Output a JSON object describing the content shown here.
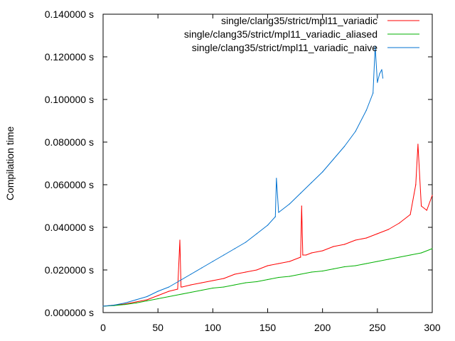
{
  "chart_data": {
    "type": "line",
    "title": "",
    "xlabel": "",
    "ylabel": "Compilation time",
    "xlim": [
      0,
      300
    ],
    "ylim": [
      0,
      0.14
    ],
    "xticks": [
      0,
      50,
      100,
      150,
      200,
      250,
      300
    ],
    "xtick_labels": [
      "0",
      "50",
      "100",
      "150",
      "200",
      "250",
      "300"
    ],
    "yticks": [
      0,
      0.02,
      0.04,
      0.06,
      0.08,
      0.1,
      0.12,
      0.14
    ],
    "ytick_labels": [
      "0.000000 s",
      "0.020000 s",
      "0.040000 s",
      "0.060000 s",
      "0.080000 s",
      "0.100000 s",
      "0.120000 s",
      "0.140000 s"
    ],
    "grid": false,
    "legend_position": "top-right",
    "series": [
      {
        "name": "single/clang35/strict/mpl11_variadic",
        "color": "#ff0000",
        "x": [
          0,
          10,
          20,
          30,
          40,
          50,
          60,
          68,
          70,
          71,
          72,
          80,
          90,
          100,
          110,
          120,
          130,
          140,
          150,
          160,
          170,
          180,
          181,
          182,
          185,
          190,
          200,
          210,
          220,
          230,
          240,
          250,
          260,
          270,
          280,
          285,
          287,
          290,
          295,
          300
        ],
        "y": [
          0.003,
          0.0035,
          0.004,
          0.005,
          0.006,
          0.008,
          0.01,
          0.011,
          0.034,
          0.012,
          0.012,
          0.013,
          0.014,
          0.015,
          0.016,
          0.018,
          0.019,
          0.02,
          0.022,
          0.023,
          0.024,
          0.026,
          0.05,
          0.027,
          0.027,
          0.028,
          0.029,
          0.031,
          0.032,
          0.034,
          0.035,
          0.037,
          0.039,
          0.042,
          0.046,
          0.06,
          0.079,
          0.05,
          0.048,
          0.055
        ]
      },
      {
        "name": "single/clang35/strict/mpl11_variadic_aliased",
        "color": "#00b000",
        "x": [
          0,
          10,
          20,
          30,
          40,
          50,
          60,
          70,
          80,
          90,
          100,
          110,
          120,
          130,
          140,
          150,
          160,
          170,
          180,
          190,
          200,
          210,
          220,
          230,
          240,
          250,
          260,
          270,
          280,
          290,
          300
        ],
        "y": [
          0.003,
          0.0033,
          0.0038,
          0.0045,
          0.0055,
          0.0065,
          0.0075,
          0.0085,
          0.0095,
          0.0105,
          0.0115,
          0.012,
          0.013,
          0.014,
          0.0145,
          0.0155,
          0.0165,
          0.017,
          0.018,
          0.019,
          0.0195,
          0.0205,
          0.0215,
          0.022,
          0.023,
          0.024,
          0.025,
          0.026,
          0.027,
          0.028,
          0.03
        ]
      },
      {
        "name": "single/clang35/strict/mpl11_variadic_naive",
        "color": "#0072d0",
        "x": [
          0,
          10,
          20,
          30,
          40,
          50,
          60,
          70,
          80,
          90,
          100,
          110,
          120,
          130,
          140,
          150,
          157,
          158,
          160,
          170,
          180,
          190,
          200,
          210,
          220,
          230,
          240,
          246,
          248,
          250,
          252,
          254,
          255
        ],
        "y": [
          0.003,
          0.0035,
          0.0045,
          0.006,
          0.0075,
          0.01,
          0.012,
          0.015,
          0.018,
          0.021,
          0.024,
          0.027,
          0.03,
          0.033,
          0.037,
          0.041,
          0.045,
          0.063,
          0.047,
          0.051,
          0.056,
          0.061,
          0.066,
          0.072,
          0.078,
          0.085,
          0.095,
          0.103,
          0.125,
          0.108,
          0.112,
          0.114,
          0.11
        ]
      }
    ]
  }
}
